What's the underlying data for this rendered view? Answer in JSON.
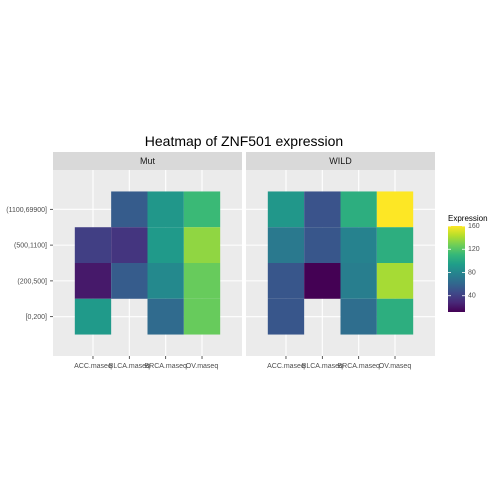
{
  "chart_data": {
    "type": "heatmap",
    "title": "Heatmap of ZNF501 expression",
    "xlabel": "",
    "ylabel": "",
    "x_categories": [
      "ACC.maseq",
      "BLCA.maseq",
      "BRCA.maseq",
      "OV.maseq"
    ],
    "y_categories": [
      "[0,200]",
      "(200,500]",
      "(500,1100]",
      "(1100,69900]"
    ],
    "panels": [
      {
        "name": "Mut",
        "cells": [
          {
            "x": "BLCA.maseq",
            "y": "(1100,69900]",
            "value": 55
          },
          {
            "x": "BRCA.maseq",
            "y": "(1100,69900]",
            "value": 90
          },
          {
            "x": "OV.maseq",
            "y": "(1100,69900]",
            "value": 112
          },
          {
            "x": "ACC.maseq",
            "y": "(500,1100]",
            "value": 40
          },
          {
            "x": "BLCA.maseq",
            "y": "(500,1100]",
            "value": 35
          },
          {
            "x": "BRCA.maseq",
            "y": "(500,1100]",
            "value": 92
          },
          {
            "x": "OV.maseq",
            "y": "(500,1100]",
            "value": 135
          },
          {
            "x": "ACC.maseq",
            "y": "(200,500]",
            "value": 22
          },
          {
            "x": "BLCA.maseq",
            "y": "(200,500]",
            "value": 55
          },
          {
            "x": "BRCA.maseq",
            "y": "(200,500]",
            "value": 82
          },
          {
            "x": "OV.maseq",
            "y": "(200,500]",
            "value": 125
          },
          {
            "x": "ACC.maseq",
            "y": "[0,200]",
            "value": 92
          },
          {
            "x": "BRCA.maseq",
            "y": "[0,200]",
            "value": 63
          },
          {
            "x": "OV.maseq",
            "y": "[0,200]",
            "value": 125
          }
        ]
      },
      {
        "name": "WILD",
        "cells": [
          {
            "x": "ACC.maseq",
            "y": "(1100,69900]",
            "value": 90
          },
          {
            "x": "BLCA.maseq",
            "y": "(1100,69900]",
            "value": 50
          },
          {
            "x": "BRCA.maseq",
            "y": "(1100,69900]",
            "value": 105
          },
          {
            "x": "OV.maseq",
            "y": "(1100,69900]",
            "value": 160
          },
          {
            "x": "ACC.maseq",
            "y": "(500,1100]",
            "value": 72
          },
          {
            "x": "BLCA.maseq",
            "y": "(500,1100]",
            "value": 52
          },
          {
            "x": "BRCA.maseq",
            "y": "(500,1100]",
            "value": 78
          },
          {
            "x": "OV.maseq",
            "y": "(500,1100]",
            "value": 105
          },
          {
            "x": "ACC.maseq",
            "y": "(200,500]",
            "value": 52
          },
          {
            "x": "BLCA.maseq",
            "y": "(200,500]",
            "value": 12
          },
          {
            "x": "BRCA.maseq",
            "y": "(200,500]",
            "value": 75
          },
          {
            "x": "OV.maseq",
            "y": "(200,500]",
            "value": 140
          },
          {
            "x": "ACC.maseq",
            "y": "[0,200]",
            "value": 52
          },
          {
            "x": "BRCA.maseq",
            "y": "[0,200]",
            "value": 65
          },
          {
            "x": "OV.maseq",
            "y": "[0,200]",
            "value": 105
          }
        ]
      }
    ],
    "legend": {
      "title": "Expression",
      "ticks": [
        40,
        80,
        120,
        160
      ],
      "range": [
        12,
        160
      ],
      "colormap": "viridis",
      "placement": "right"
    },
    "grid": true
  }
}
